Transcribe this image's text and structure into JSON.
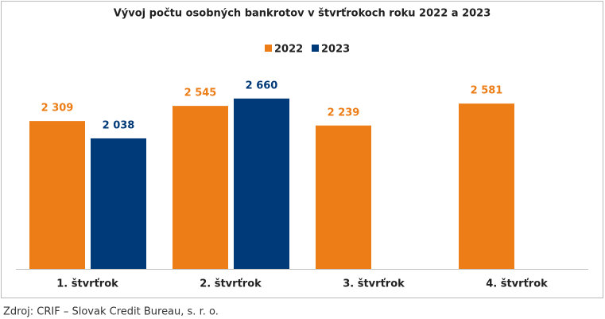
{
  "chart_data": {
    "type": "bar",
    "title": "Vývoj počtu osobných bankrotov v štvrťrokoch roku 2022 a 2023",
    "categories": [
      "1. štvrťrok",
      "2. štvrťrok",
      "3. štvrťrok",
      "4. štvrťrok"
    ],
    "series": [
      {
        "name": "2022",
        "color": "#ED7D17",
        "values": [
          2309,
          2545,
          2239,
          2581
        ],
        "value_labels": [
          "2 309",
          "2 545",
          "2 239",
          "2 581"
        ]
      },
      {
        "name": "2023",
        "color": "#003A78",
        "values": [
          2038,
          2660,
          null,
          null
        ],
        "value_labels": [
          "2 038",
          "2 660",
          null,
          null
        ]
      }
    ],
    "source": "Zdroj: CRIF – Slovak Credit Bureau, s. r. o."
  }
}
